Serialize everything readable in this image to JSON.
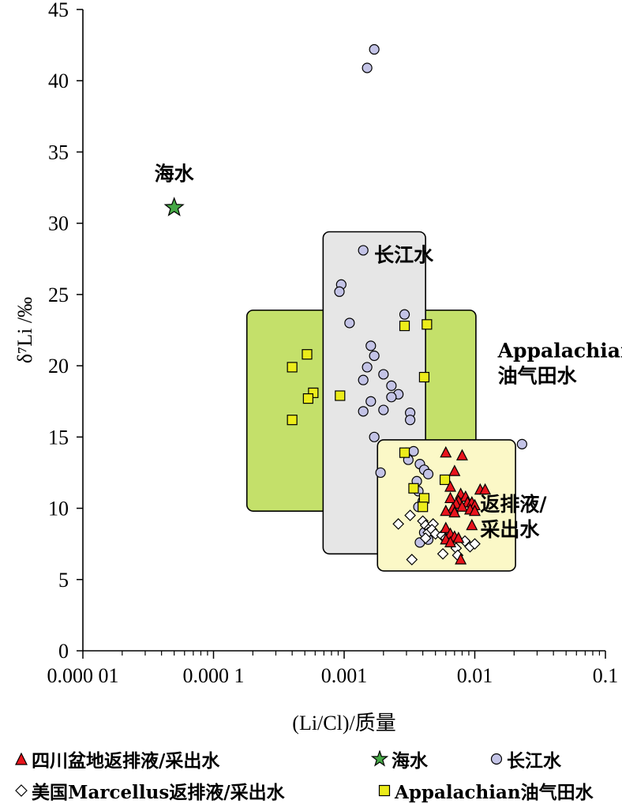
{
  "chart_data": {
    "type": "scatter",
    "xlabel": "(Li/Cl)/质量",
    "ylabel": "δ⁷Li /‰",
    "xscale": "log",
    "xlim": [
      1e-05,
      0.1
    ],
    "ylim": [
      0,
      45
    ],
    "x_ticks": [
      {
        "value": 1e-05,
        "label": "0.000 01"
      },
      {
        "value": 0.0001,
        "label": "0.000 1"
      },
      {
        "value": 0.001,
        "label": "0.001"
      },
      {
        "value": 0.01,
        "label": "0.01"
      },
      {
        "value": 0.1,
        "label": "0.1"
      }
    ],
    "y_ticks": [
      0,
      5,
      10,
      15,
      20,
      25,
      30,
      35,
      40,
      45
    ],
    "grid": false,
    "legend_position": "bottom",
    "regions": [
      {
        "name": "Appalachian油气田水",
        "label": [
          "Appalachian",
          "油气田水"
        ],
        "x": [
          0.00018,
          0.0102
        ],
        "y": [
          9.8,
          23.9
        ],
        "color": "#c4e06a",
        "label_at": {
          "x": 0.015,
          "y": 20.6
        },
        "label_align": "start"
      },
      {
        "name": "长江水",
        "label": [
          "长江水"
        ],
        "x": [
          0.00069,
          0.0042
        ],
        "y": [
          6.8,
          29.4
        ],
        "color": "#e6e6e6",
        "label_at": {
          "x": 0.0017,
          "y": 27.3
        },
        "label_align": "start"
      },
      {
        "name": "返排液/采出水",
        "label": [
          "返排液/",
          "采出水"
        ],
        "x": [
          0.0018,
          0.0205
        ],
        "y": [
          5.6,
          14.8
        ],
        "color": "#fbf8c7",
        "label_at": {
          "x": 0.011,
          "y": 9.8
        },
        "label_align": "start"
      }
    ],
    "series": [
      {
        "name": "四川盆地返排液/采出水",
        "marker": "triangle",
        "color": "#e8141c",
        "points": [
          [
            0.006,
            13.9
          ],
          [
            0.008,
            13.7
          ],
          [
            0.007,
            12.6
          ],
          [
            0.0065,
            11.5
          ],
          [
            0.011,
            11.3
          ],
          [
            0.012,
            11.3
          ],
          [
            0.0078,
            11.0
          ],
          [
            0.0085,
            10.8
          ],
          [
            0.0065,
            10.7
          ],
          [
            0.0075,
            10.5
          ],
          [
            0.0088,
            10.4
          ],
          [
            0.0095,
            10.4
          ],
          [
            0.0072,
            10.3
          ],
          [
            0.01,
            10.2
          ],
          [
            0.008,
            10.1
          ],
          [
            0.0068,
            10.0
          ],
          [
            0.0092,
            9.9
          ],
          [
            0.006,
            9.8
          ],
          [
            0.01,
            9.8
          ],
          [
            0.007,
            9.7
          ],
          [
            0.006,
            8.6
          ],
          [
            0.0095,
            8.8
          ],
          [
            0.0065,
            8.2
          ],
          [
            0.007,
            8.0
          ],
          [
            0.006,
            7.8
          ],
          [
            0.0065,
            7.6
          ],
          [
            0.0075,
            7.9
          ],
          [
            0.0078,
            6.4
          ]
        ]
      },
      {
        "name": "海水",
        "marker": "star",
        "color": "#45a845",
        "points": [
          [
            5e-05,
            31.1
          ]
        ]
      },
      {
        "name": "长江水",
        "marker": "circle",
        "color": "#c3c3e6",
        "points": [
          [
            0.0017,
            42.2
          ],
          [
            0.0015,
            40.9
          ],
          [
            0.0014,
            28.1
          ],
          [
            0.00095,
            25.7
          ],
          [
            0.00092,
            25.2
          ],
          [
            0.0029,
            23.6
          ],
          [
            0.0011,
            23.0
          ],
          [
            0.0016,
            21.4
          ],
          [
            0.0017,
            20.7
          ],
          [
            0.0015,
            19.9
          ],
          [
            0.002,
            19.4
          ],
          [
            0.0014,
            19.0
          ],
          [
            0.0023,
            18.6
          ],
          [
            0.0026,
            18.0
          ],
          [
            0.0023,
            17.8
          ],
          [
            0.0016,
            17.5
          ],
          [
            0.0014,
            16.8
          ],
          [
            0.002,
            16.9
          ],
          [
            0.0032,
            16.7
          ],
          [
            0.0032,
            16.2
          ],
          [
            0.0017,
            15.0
          ],
          [
            0.023,
            14.5
          ],
          [
            0.003,
            13.9
          ],
          [
            0.0034,
            14.0
          ],
          [
            0.0031,
            13.4
          ],
          [
            0.0038,
            13.1
          ],
          [
            0.0041,
            12.7
          ],
          [
            0.0044,
            12.4
          ],
          [
            0.0019,
            12.5
          ],
          [
            0.0036,
            11.9
          ],
          [
            0.0037,
            11.2
          ],
          [
            0.004,
            10.5
          ],
          [
            0.0037,
            10.1
          ],
          [
            0.0041,
            8.3
          ],
          [
            0.0038,
            7.6
          ],
          [
            0.0044,
            7.8
          ]
        ]
      },
      {
        "name": "美国Marcellus返排液/采出水",
        "marker": "diamond",
        "color": "#ffffff",
        "points": [
          [
            0.0026,
            8.9
          ],
          [
            0.0032,
            9.5
          ],
          [
            0.004,
            9.1
          ],
          [
            0.0042,
            8.8
          ],
          [
            0.0045,
            8.6
          ],
          [
            0.0048,
            8.9
          ],
          [
            0.0044,
            8.3
          ],
          [
            0.0047,
            8.5
          ],
          [
            0.005,
            8.2
          ],
          [
            0.0042,
            7.9
          ],
          [
            0.0056,
            8.1
          ],
          [
            0.006,
            7.9
          ],
          [
            0.0084,
            7.7
          ],
          [
            0.0092,
            7.3
          ],
          [
            0.01,
            7.5
          ],
          [
            0.0072,
            7.2
          ],
          [
            0.0057,
            6.8
          ],
          [
            0.0074,
            6.7
          ],
          [
            0.0033,
            6.4
          ]
        ]
      },
      {
        "name": "Appalachian油气田水",
        "marker": "square",
        "color": "#ecec1a",
        "points": [
          [
            0.00052,
            20.8
          ],
          [
            0.0004,
            19.9
          ],
          [
            0.0029,
            22.8
          ],
          [
            0.0043,
            22.9
          ],
          [
            0.0041,
            19.2
          ],
          [
            0.00058,
            18.1
          ],
          [
            0.00053,
            17.7
          ],
          [
            0.00093,
            17.9
          ],
          [
            0.0004,
            16.2
          ],
          [
            0.0029,
            13.9
          ],
          [
            0.0059,
            12.0
          ],
          [
            0.0034,
            11.4
          ],
          [
            0.0041,
            10.7
          ],
          [
            0.004,
            10.1
          ]
        ]
      }
    ],
    "annotations": [
      {
        "text": "海水",
        "x": 5e-05,
        "y": 33.0
      }
    ]
  }
}
